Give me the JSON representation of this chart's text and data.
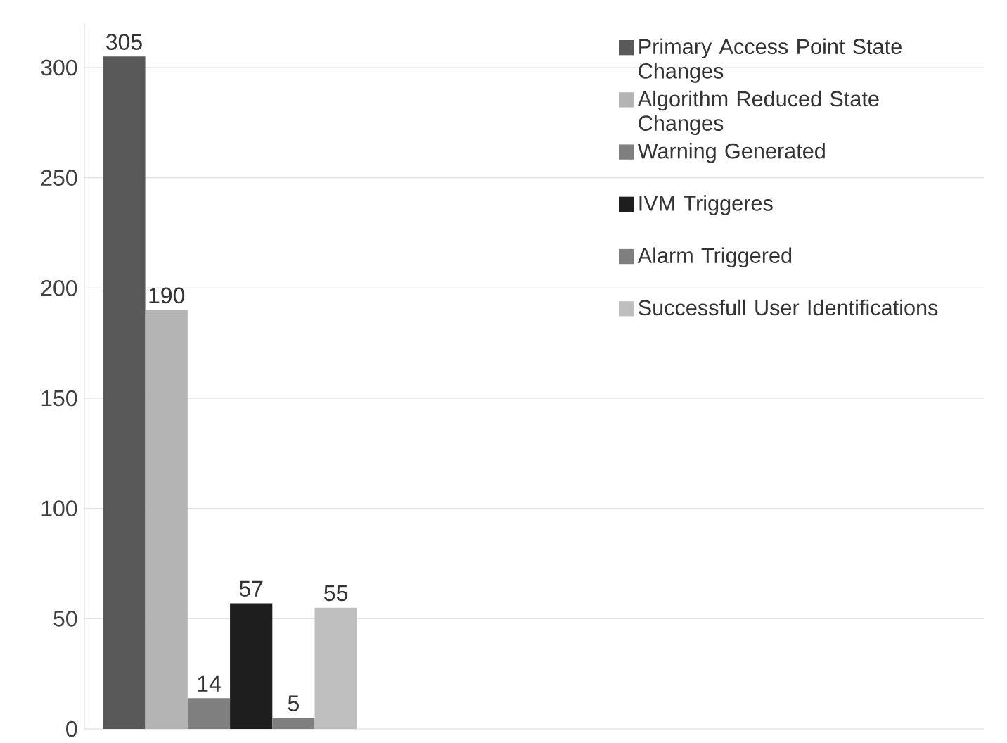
{
  "chart_data": {
    "type": "bar",
    "categories": [
      null
    ],
    "series": [
      {
        "name": "Primary Access Point State Changes",
        "color": "#595959",
        "values": [
          305
        ]
      },
      {
        "name": "Algorithm Reduced State Changes",
        "color": "#b4b4b4",
        "values": [
          190
        ]
      },
      {
        "name": "Warning Generated",
        "color": "#7f7f7f",
        "values": [
          14
        ]
      },
      {
        "name": "IVM Triggeres",
        "color": "#1e1e1e",
        "values": [
          57
        ]
      },
      {
        "name": "Alarm Triggered",
        "color": "#7f7f7f",
        "values": [
          5
        ]
      },
      {
        "name": "Successfull User Identifications",
        "color": "#bfbfbf",
        "values": [
          55
        ]
      }
    ],
    "ylim": [
      0,
      320
    ],
    "yticks": [
      0,
      50,
      100,
      150,
      200,
      250,
      300
    ],
    "grid": "y",
    "legend": "top right",
    "data_labels": true,
    "tick_labels": "y"
  }
}
